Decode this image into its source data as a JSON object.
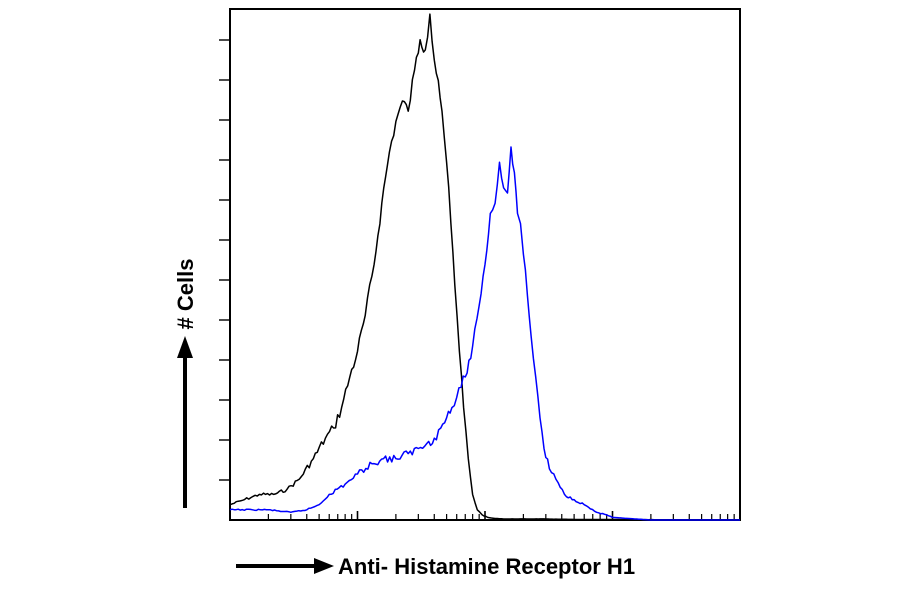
{
  "chart_data": {
    "type": "line",
    "title": "",
    "xlabel": "Anti- Histamine Receptor H1",
    "ylabel": "# Cells",
    "x_scale": "log",
    "xlim": [
      1,
      10000
    ],
    "ylim": [
      0,
      100
    ],
    "grid": false,
    "series": [
      {
        "color": "#000000",
        "x": [
          1,
          1.3,
          1.7,
          2.2,
          2.8,
          3.5,
          4.5,
          5.6,
          6.5,
          7.5,
          8.7,
          10,
          11.5,
          13.5,
          15.5,
          17.8,
          20,
          22.5,
          25,
          28,
          31,
          34,
          37,
          40,
          43,
          46,
          50,
          54,
          58,
          63,
          68,
          74,
          80,
          87,
          95,
          105,
          120,
          140,
          170,
          220,
          300,
          500,
          1000,
          10000
        ],
        "y": [
          3,
          4,
          5,
          5,
          6,
          8,
          12,
          16,
          18,
          22,
          28,
          33,
          40,
          50,
          62,
          72,
          78,
          82,
          80,
          88,
          94,
          92,
          99,
          90,
          86,
          80,
          70,
          58,
          46,
          33,
          22,
          12,
          5,
          2,
          1,
          0.5,
          0.3,
          0.2,
          0.2,
          0.2,
          0.2,
          0.1,
          0.1,
          0
        ]
      },
      {
        "color": "#0000ff",
        "x": [
          1,
          1.5,
          2,
          3,
          4,
          5,
          6,
          8,
          10,
          13,
          16,
          20,
          25,
          30,
          35,
          40,
          45,
          50,
          55,
          60,
          65,
          70,
          80,
          90,
          100,
          110,
          120,
          130,
          140,
          150,
          160,
          170,
          180,
          190,
          200,
          215,
          230,
          250,
          270,
          290,
          320,
          360,
          420,
          500,
          600,
          750,
          900,
          1000,
          2000,
          10000
        ],
        "y": [
          2,
          2,
          2,
          1.5,
          2,
          3,
          5,
          7,
          9,
          11,
          12,
          12,
          13,
          14,
          15,
          16,
          18,
          20,
          22,
          24,
          26,
          28,
          34,
          42,
          50,
          60,
          62,
          70,
          65,
          64,
          73,
          68,
          60,
          58,
          52,
          44,
          36,
          28,
          20,
          14,
          10,
          8,
          5,
          4,
          3,
          1.5,
          1,
          0.5,
          0,
          0
        ]
      }
    ]
  }
}
